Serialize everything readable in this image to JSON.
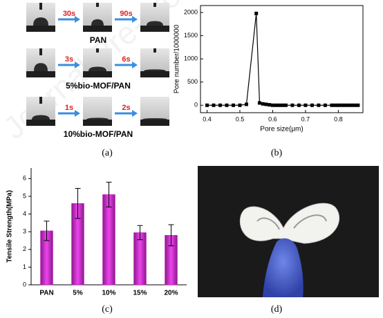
{
  "watermark": "Journal Pre-proof",
  "wetting": {
    "rows": [
      {
        "times": [
          "30s",
          "90s"
        ],
        "label": "PAN"
      },
      {
        "times": [
          "3s",
          "6s"
        ],
        "label": "5%bio-MOF/PAN"
      },
      {
        "times": [
          "1s",
          "2s"
        ],
        "label": "10%bio-MOF/PAN"
      }
    ]
  },
  "captions": [
    "(a)",
    "(b)",
    "(c)",
    "(d)"
  ],
  "chart_data": [
    {
      "type": "line",
      "marker": "square",
      "color": "#000000",
      "x_label": "Pore size(μm)",
      "y_label": "Pore number/1000000",
      "x": [
        0.4,
        0.42,
        0.44,
        0.46,
        0.48,
        0.5,
        0.52,
        0.55,
        0.56,
        0.57,
        0.58,
        0.59,
        0.6,
        0.61,
        0.62,
        0.63,
        0.64,
        0.66,
        0.68,
        0.7,
        0.72,
        0.74,
        0.76,
        0.78,
        0.79,
        0.8,
        0.81,
        0.82,
        0.83,
        0.84,
        0.85,
        0.86
      ],
      "values": [
        0,
        0,
        0,
        0,
        0,
        0,
        20,
        1980,
        50,
        30,
        20,
        10,
        0,
        0,
        0,
        0,
        0,
        0,
        0,
        0,
        0,
        0,
        0,
        0,
        0,
        0,
        0,
        0,
        0,
        0,
        0,
        0
      ],
      "xlim": [
        0.38,
        0.875
      ],
      "ylim": [
        -160,
        2150
      ],
      "xticks": [
        0.4,
        0.5,
        0.6,
        0.7,
        0.8
      ],
      "yticks": [
        0,
        500,
        1000,
        1500,
        2000
      ]
    },
    {
      "type": "bar",
      "color": "#cc22cc",
      "y_label": "Tensile Strength(MPa)",
      "categories": [
        "PAN",
        "5%",
        "10%",
        "15%",
        "20%"
      ],
      "values": [
        3.05,
        4.6,
        5.1,
        2.95,
        2.8
      ],
      "errors": [
        0.55,
        0.85,
        0.7,
        0.4,
        0.6
      ],
      "ylim": [
        0,
        6.6
      ],
      "yticks": [
        0,
        1,
        2,
        3,
        4,
        5,
        6
      ]
    }
  ]
}
